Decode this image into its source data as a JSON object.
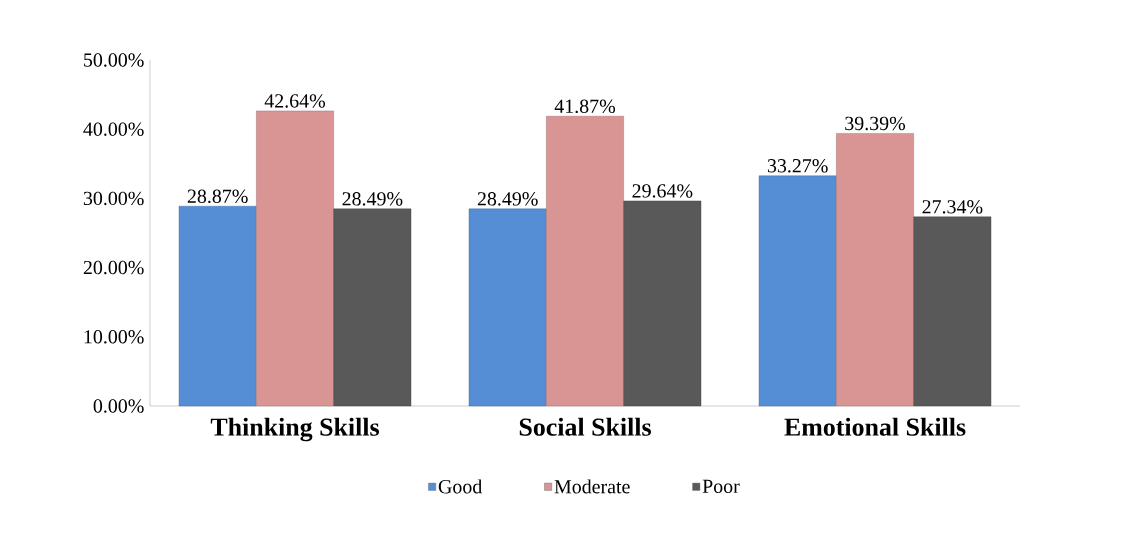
{
  "chart_data": {
    "type": "bar",
    "categories": [
      "Thinking Skills",
      "Social Skills",
      "Emotional Skills"
    ],
    "series": [
      {
        "name": "Good",
        "color": "#558ed5",
        "values": [
          28.87,
          28.49,
          33.27
        ],
        "value_labels": [
          "28.87%",
          "28.49%",
          "33.27%"
        ]
      },
      {
        "name": "Moderate",
        "color": "#d99594",
        "values": [
          42.64,
          41.87,
          39.39
        ],
        "value_labels": [
          "42.64%",
          "41.87%",
          "39.39%"
        ]
      },
      {
        "name": "Poor",
        "color": "#595959",
        "values": [
          28.49,
          29.64,
          27.34
        ],
        "value_labels": [
          "28.49%",
          "29.64%",
          "27.34%"
        ]
      }
    ],
    "ylim": [
      0,
      50
    ],
    "yticks": [
      {
        "value": 0,
        "label": "0.00%"
      },
      {
        "value": 10,
        "label": "10.00%"
      },
      {
        "value": 20,
        "label": "20.00%"
      },
      {
        "value": 30,
        "label": "30.00%"
      },
      {
        "value": 40,
        "label": "40.00%"
      },
      {
        "value": 50,
        "label": "50.00%"
      }
    ],
    "legend": "bottom",
    "grid": false
  }
}
